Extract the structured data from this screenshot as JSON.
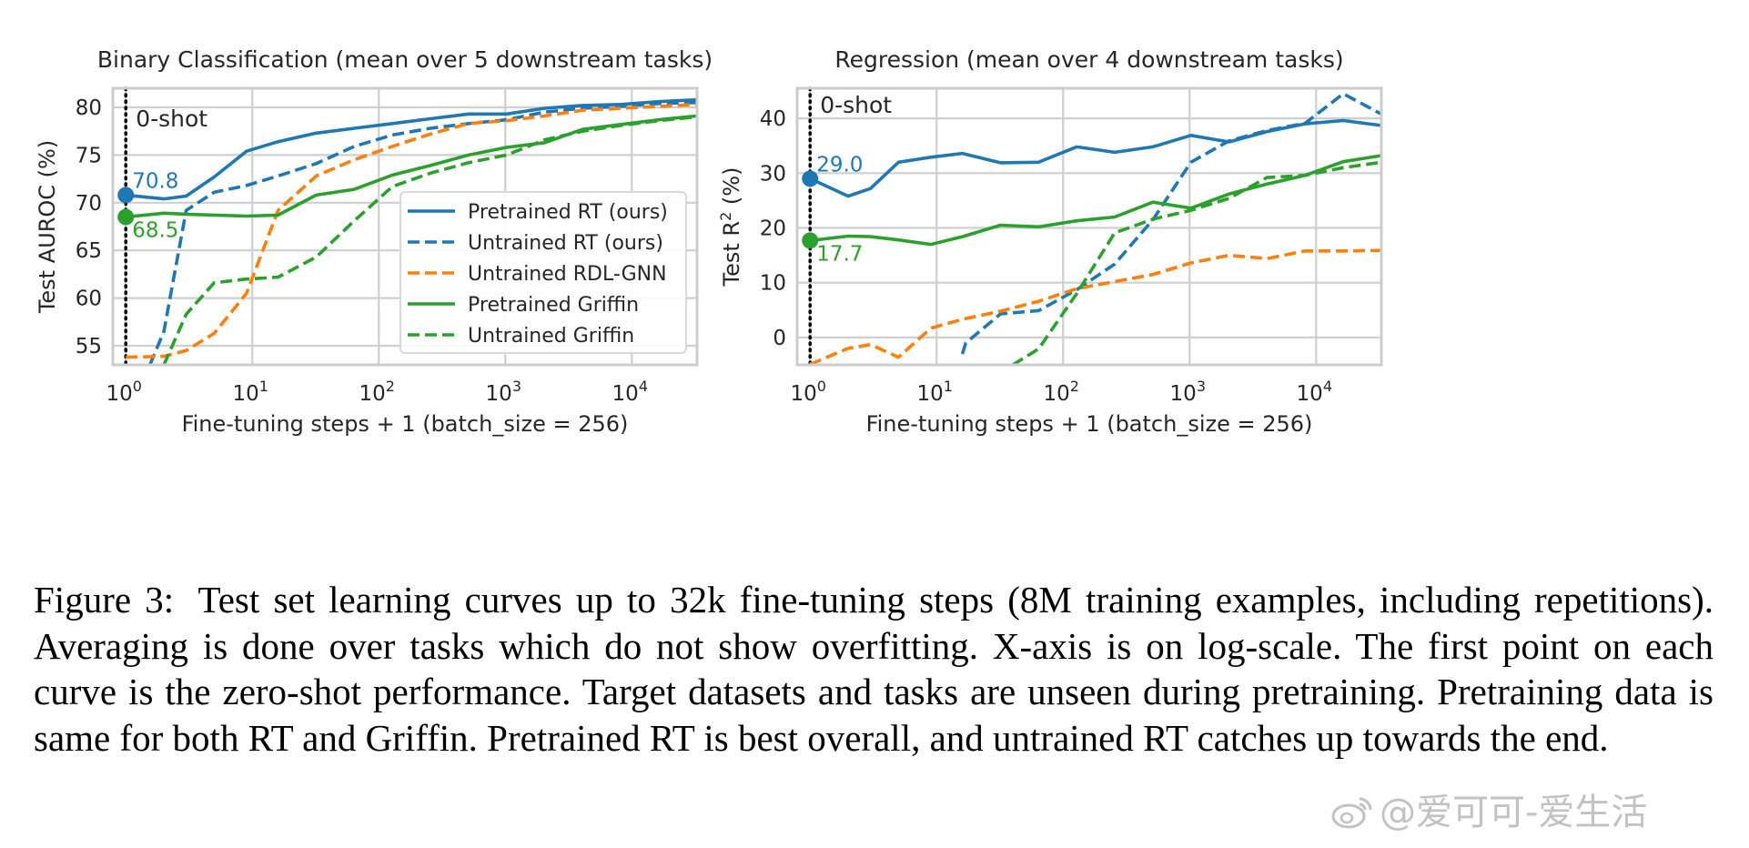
{
  "chart_data": [
    {
      "type": "line",
      "title": "Binary Classification (mean over 5 downstream tasks)",
      "xlabel": "Fine-tuning steps + 1 (batch_size = 256)",
      "ylabel": "Test AUROC (%)",
      "xscale": "log",
      "xlim": [
        0.79,
        32800
      ],
      "ylim": [
        53,
        82
      ],
      "x_ticks": [
        1,
        10,
        100,
        1000,
        10000
      ],
      "x_tick_labels": [
        [
          "10",
          "0"
        ],
        [
          "10",
          "1"
        ],
        [
          "10",
          "2"
        ],
        [
          "10",
          "3"
        ],
        [
          "10",
          "4"
        ]
      ],
      "y_ticks": [
        55,
        60,
        65,
        70,
        75,
        80
      ],
      "y_tick_labels": [
        "55",
        "60",
        "65",
        "70",
        "75",
        "80"
      ],
      "grid": true,
      "zero_shot_label": "0-shot",
      "zero_shot_points": [
        {
          "series": "Pretrained RT (ours)",
          "x": 1,
          "y": 70.8,
          "label": "70.8",
          "label_pos": "above"
        },
        {
          "series": "Pretrained Griffin",
          "x": 1,
          "y": 68.5,
          "label": "68.5",
          "label_pos": "below"
        }
      ],
      "legend_position": "lower-right",
      "series": [
        {
          "name": "Pretrained RT (ours)",
          "color": "#1f77b4",
          "dash": "solid",
          "x": [
            1,
            2,
            3,
            5,
            9,
            16,
            32,
            64,
            128,
            256,
            512,
            1024,
            2048,
            4096,
            8192,
            16384,
            32768
          ],
          "y": [
            70.8,
            70.4,
            70.7,
            72.7,
            75.4,
            76.4,
            77.3,
            77.8,
            78.3,
            78.8,
            79.3,
            79.3,
            79.9,
            80.2,
            80.3,
            80.6,
            80.8
          ]
        },
        {
          "name": "Untrained RT (ours)",
          "color": "#1f77b4",
          "dash": "dashed",
          "x": [
            1.55,
            2,
            3,
            5,
            9,
            16,
            32,
            64,
            128,
            256,
            512,
            1024,
            2048,
            4096,
            8192,
            16384,
            32768
          ],
          "y": [
            53,
            56.5,
            69.2,
            71.1,
            71.8,
            72.8,
            74.1,
            75.9,
            77.1,
            77.8,
            78.3,
            78.7,
            79.5,
            79.9,
            80.1,
            80.4,
            80.5
          ]
        },
        {
          "name": "Untrained RDL-GNN",
          "color": "#ff7f0e",
          "dash": "dashed",
          "x": [
            1,
            2,
            3,
            5,
            9,
            16,
            32,
            64,
            128,
            256,
            512,
            1024,
            2048,
            4096,
            8192,
            16384,
            32768
          ],
          "y": [
            53.8,
            53.9,
            54.5,
            56.3,
            60.5,
            69.2,
            72.8,
            74.5,
            75.9,
            77.2,
            78.3,
            78.6,
            79.1,
            79.7,
            79.9,
            80.1,
            80.3
          ]
        },
        {
          "name": "Pretrained Griffin",
          "color": "#2ca02c",
          "dash": "solid",
          "x": [
            1,
            2,
            3,
            5,
            9,
            16,
            32,
            64,
            128,
            256,
            512,
            1024,
            2048,
            4096,
            8192,
            16384,
            32768
          ],
          "y": [
            68.5,
            68.9,
            68.8,
            68.7,
            68.6,
            68.7,
            70.8,
            71.4,
            72.9,
            73.9,
            75.0,
            75.8,
            76.3,
            77.7,
            78.2,
            78.7,
            79.1
          ]
        },
        {
          "name": "Untrained Griffin",
          "color": "#2ca02c",
          "dash": "dashed",
          "x": [
            2,
            3,
            5,
            9,
            16,
            32,
            64,
            128,
            256,
            512,
            1024,
            2048,
            4096,
            8192,
            16384,
            32768
          ],
          "y": [
            53,
            58.3,
            61.6,
            62.0,
            62.2,
            64.3,
            68.1,
            71.7,
            73.1,
            74.2,
            75.0,
            76.6,
            77.5,
            78.1,
            78.6,
            79.0
          ]
        }
      ]
    },
    {
      "type": "line",
      "title": "Regression (mean over 4 downstream tasks)",
      "xlabel": "Fine-tuning steps + 1 (batch_size = 256)",
      "ylabel": "Test R² (%)",
      "xscale": "log",
      "xlim": [
        0.79,
        32800
      ],
      "ylim": [
        -5,
        45.5
      ],
      "x_ticks": [
        1,
        10,
        100,
        1000,
        10000
      ],
      "x_tick_labels": [
        [
          "10",
          "0"
        ],
        [
          "10",
          "1"
        ],
        [
          "10",
          "2"
        ],
        [
          "10",
          "3"
        ],
        [
          "10",
          "4"
        ]
      ],
      "y_ticks": [
        0,
        10,
        20,
        30,
        40
      ],
      "y_tick_labels": [
        "0",
        "10",
        "20",
        "30",
        "40"
      ],
      "grid": true,
      "zero_shot_label": "0-shot",
      "zero_shot_points": [
        {
          "series": "Pretrained RT (ours)",
          "x": 1,
          "y": 29.0,
          "label": "29.0",
          "label_pos": "above"
        },
        {
          "series": "Pretrained Griffin",
          "x": 1,
          "y": 17.7,
          "label": "17.7",
          "label_pos": "below"
        }
      ],
      "series": [
        {
          "name": "Pretrained RT (ours)",
          "color": "#1f77b4",
          "dash": "solid",
          "x": [
            1,
            2,
            3,
            5,
            9,
            16,
            32,
            64,
            128,
            256,
            512,
            1024,
            2048,
            4096,
            8192,
            16384,
            32768
          ],
          "y": [
            29.0,
            25.8,
            27.2,
            32.0,
            32.9,
            33.6,
            31.9,
            32.0,
            34.8,
            33.8,
            34.8,
            36.9,
            35.7,
            37.6,
            39.0,
            39.6,
            38.7
          ]
        },
        {
          "name": "Untrained RT (ours)",
          "color": "#1f77b4",
          "dash": "dashed",
          "x": [
            16,
            17,
            32,
            64,
            128,
            256,
            512,
            1024,
            2048,
            4096,
            8192,
            16384,
            32768
          ],
          "y": [
            -3,
            -1.0,
            4.3,
            4.9,
            8.7,
            13.4,
            21.5,
            32.0,
            35.9,
            37.8,
            39.1,
            44.5,
            40.8
          ]
        },
        {
          "name": "Untrained RDL-GNN",
          "color": "#ff7f0e",
          "dash": "dashed",
          "x": [
            1,
            2,
            3,
            5,
            9,
            16,
            32,
            64,
            128,
            256,
            512,
            1024,
            2048,
            4096,
            8192,
            16384,
            32768
          ],
          "y": [
            -4.9,
            -2.0,
            -1.3,
            -3.6,
            1.7,
            3.3,
            4.8,
            6.6,
            8.9,
            10.2,
            11.5,
            13.6,
            15.0,
            14.4,
            15.8,
            15.8,
            15.9
          ]
        },
        {
          "name": "Pretrained Griffin",
          "color": "#2ca02c",
          "dash": "solid",
          "x": [
            1,
            2,
            3,
            5,
            9,
            16,
            32,
            64,
            128,
            256,
            512,
            1024,
            2048,
            4096,
            8192,
            16384,
            32768
          ],
          "y": [
            17.7,
            18.5,
            18.4,
            17.8,
            17.0,
            18.4,
            20.5,
            20.2,
            21.3,
            22.0,
            24.7,
            23.6,
            26.2,
            28.0,
            29.6,
            32.1,
            33.2
          ]
        },
        {
          "name": "Untrained Griffin",
          "color": "#2ca02c",
          "dash": "dashed",
          "x": [
            40,
            64,
            128,
            256,
            512,
            1024,
            2048,
            4096,
            8192,
            16384,
            32768
          ],
          "y": [
            -5,
            -2.1,
            8.0,
            19.1,
            21.6,
            23.2,
            25.4,
            29.2,
            29.6,
            31.0,
            32.0
          ]
        }
      ]
    }
  ],
  "caption": {
    "label": "Figure 3:",
    "text": "Test set learning curves up to 32k fine-tuning steps (8M training examples, including repetitions). Averaging is done over tasks which do not show overfitting. X-axis is on log-scale. The first point on each curve is the zero-shot performance. Target datasets and tasks are unseen during pretraining. Pretraining data is same for both RT and Griffin. Pretrained RT is best overall, and untrained RT catches up towards the end."
  },
  "watermark": {
    "text": "@爱可可-爱生活",
    "icon": "weibo-icon"
  }
}
